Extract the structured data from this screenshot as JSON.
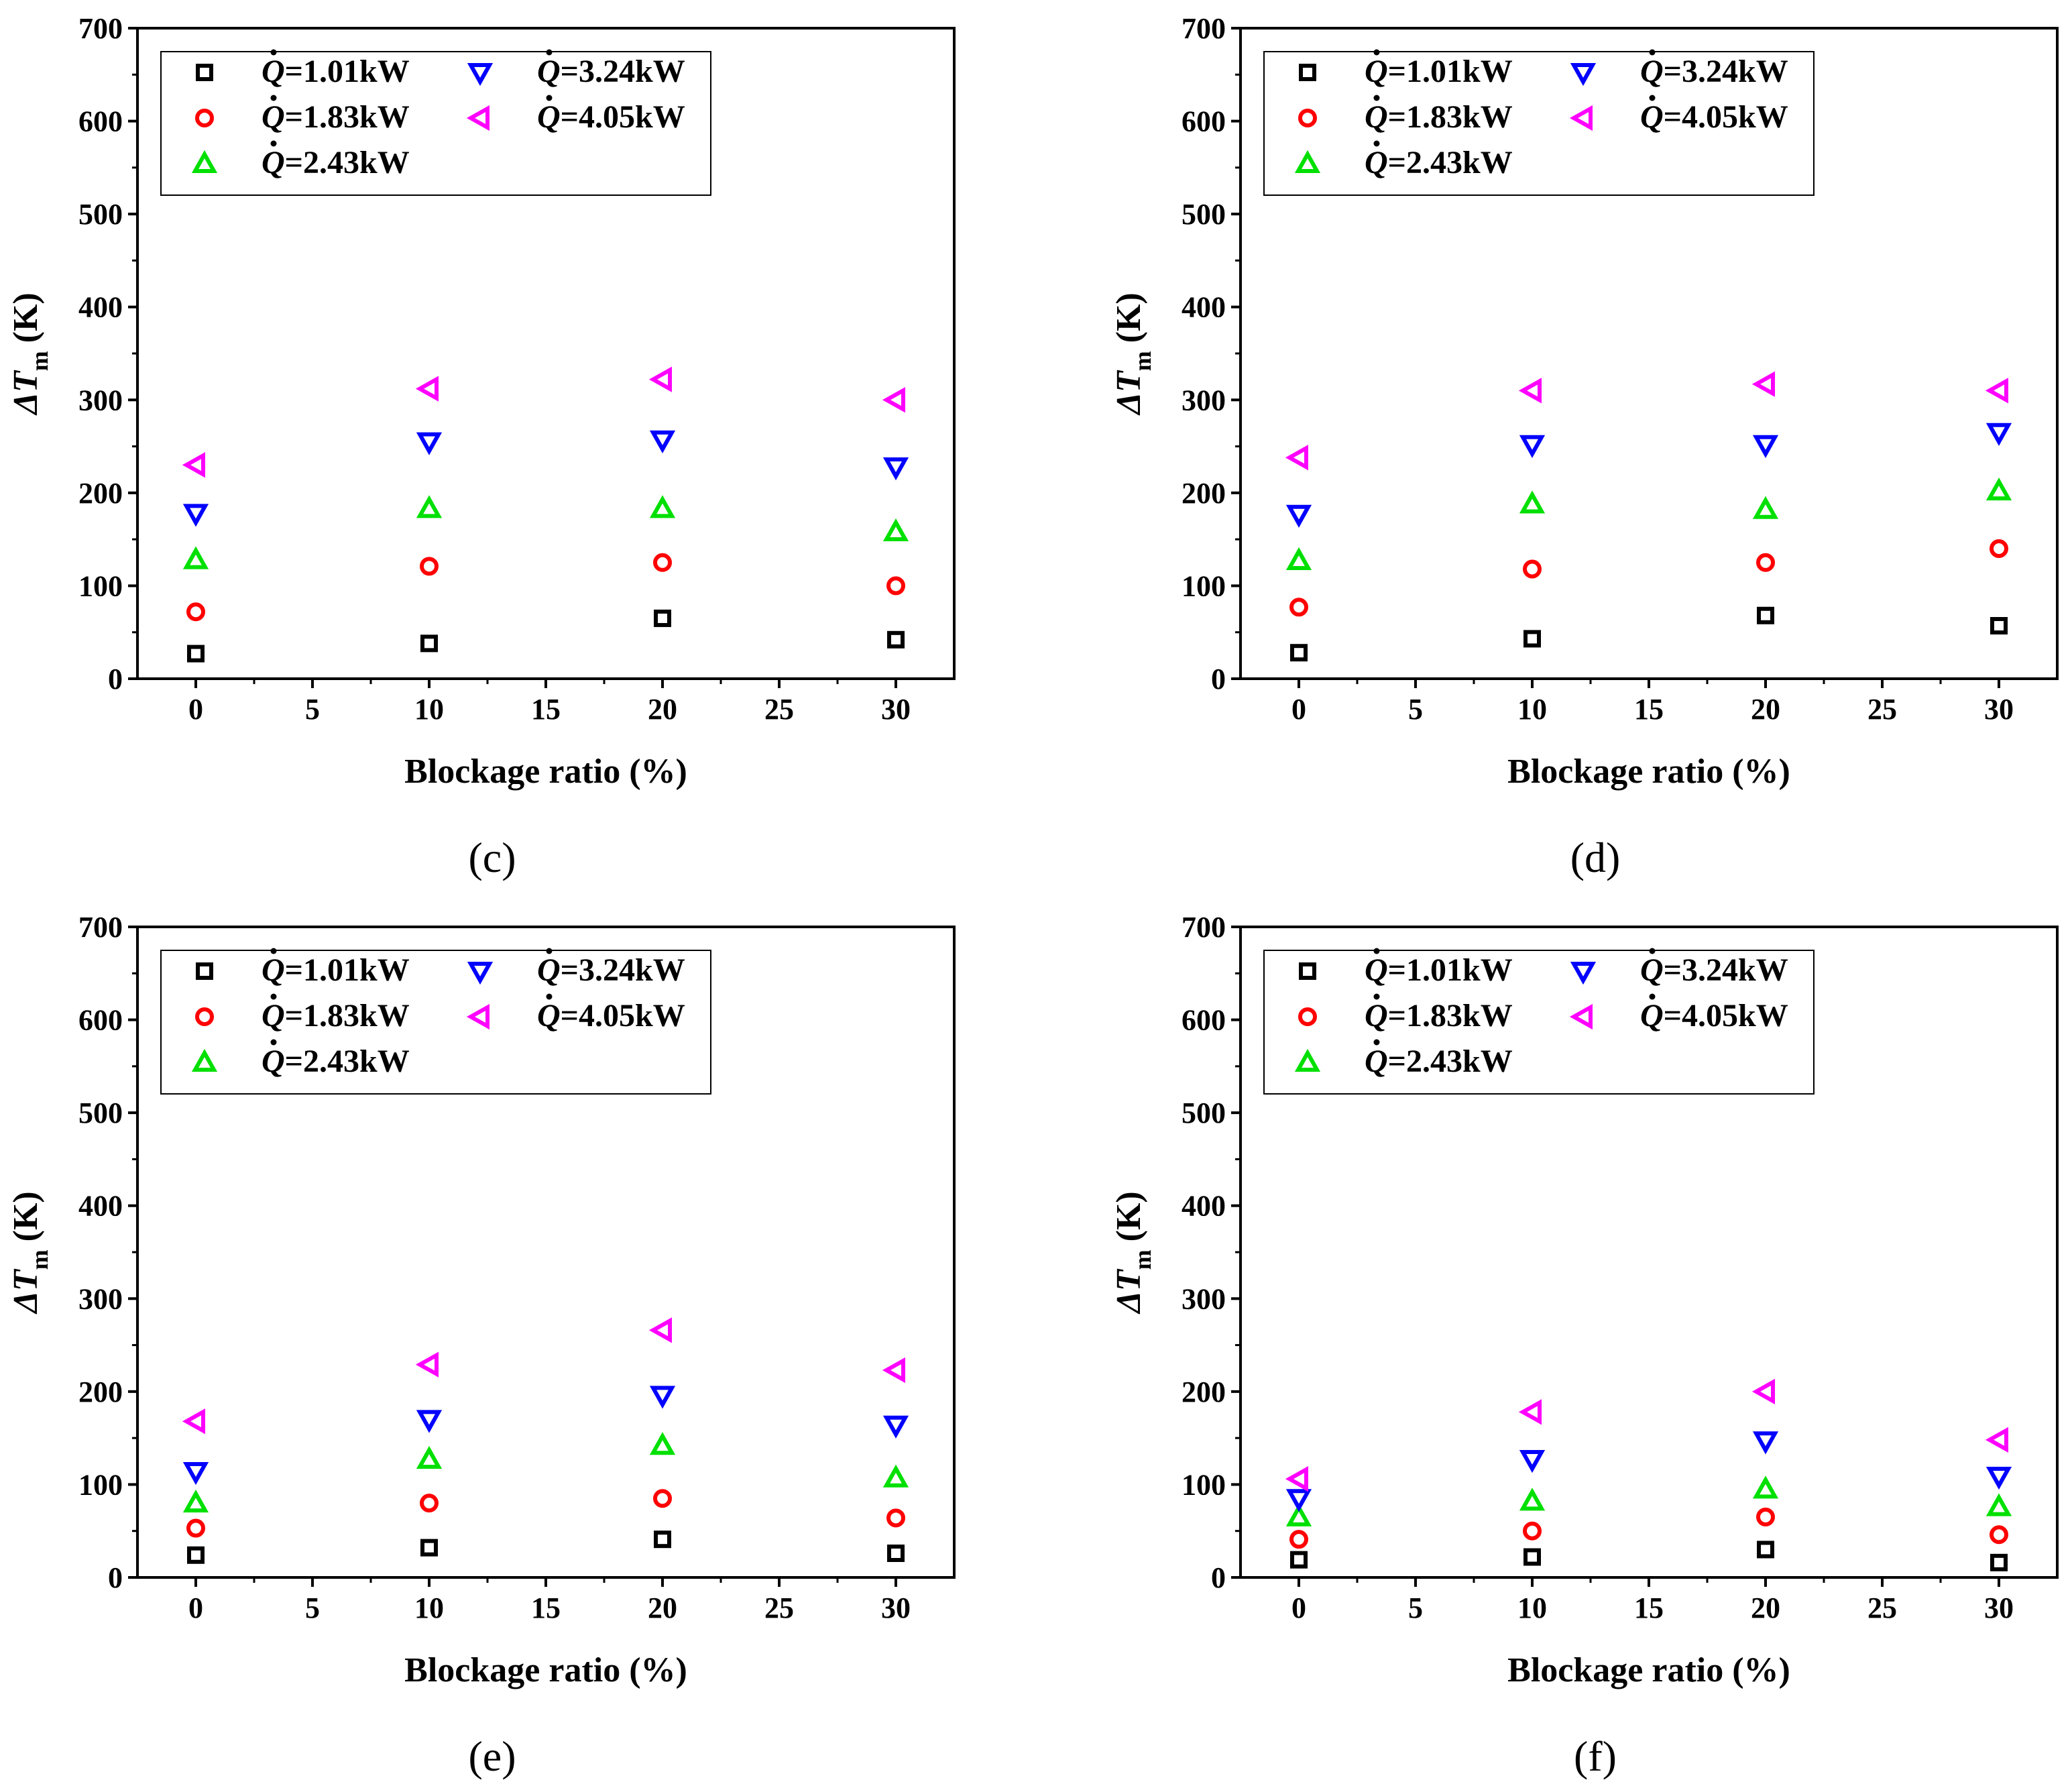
{
  "chart_data": [
    {
      "type": "scatter",
      "panel_label": "(c)",
      "title": "",
      "xlabel": "Blockage ratio (%)",
      "ylabel_main": "ΔT",
      "ylabel_sub": "m",
      "ylabel_unit": "(K)",
      "xlim": [
        -2.5,
        32.5
      ],
      "ylim": [
        0,
        700
      ],
      "xticks": [
        0,
        5,
        10,
        15,
        20,
        25,
        30
      ],
      "yticks": [
        0,
        100,
        200,
        300,
        400,
        500,
        600,
        700
      ],
      "legend_position": "top-left",
      "x": [
        0,
        10,
        20,
        30
      ],
      "series": [
        {
          "name": "Q=1.01kW",
          "marker": "square",
          "color": "#000000",
          "values": [
            27,
            38,
            65,
            42
          ]
        },
        {
          "name": "Q=1.83kW",
          "marker": "circle",
          "color": "#ff0000",
          "values": [
            72,
            121,
            125,
            100
          ]
        },
        {
          "name": "Q=2.43kW",
          "marker": "triangle-up",
          "color": "#00e000",
          "values": [
            128,
            183,
            183,
            158
          ]
        },
        {
          "name": "Q=3.24kW",
          "marker": "triangle-down",
          "color": "#0000ff",
          "values": [
            178,
            255,
            257,
            228
          ]
        },
        {
          "name": "Q=4.05kW",
          "marker": "triangle-left",
          "color": "#ff00ff",
          "values": [
            230,
            312,
            322,
            300
          ]
        }
      ]
    },
    {
      "type": "scatter",
      "panel_label": "(d)",
      "title": "",
      "xlabel": "Blockage ratio (%)",
      "ylabel_main": "ΔT",
      "ylabel_sub": "m",
      "ylabel_unit": "(K)",
      "xlim": [
        -2.5,
        32.5
      ],
      "ylim": [
        0,
        700
      ],
      "xticks": [
        0,
        5,
        10,
        15,
        20,
        25,
        30
      ],
      "yticks": [
        0,
        100,
        200,
        300,
        400,
        500,
        600,
        700
      ],
      "legend_position": "top-left",
      "x": [
        0,
        10,
        20,
        30
      ],
      "series": [
        {
          "name": "Q=1.01kW",
          "marker": "square",
          "color": "#000000",
          "values": [
            28,
            43,
            68,
            57
          ]
        },
        {
          "name": "Q=1.83kW",
          "marker": "circle",
          "color": "#ff0000",
          "values": [
            77,
            118,
            125,
            140
          ]
        },
        {
          "name": "Q=2.43kW",
          "marker": "triangle-up",
          "color": "#00e000",
          "values": [
            127,
            188,
            182,
            202
          ]
        },
        {
          "name": "Q=3.24kW",
          "marker": "triangle-down",
          "color": "#0000ff",
          "values": [
            177,
            252,
            252,
            265
          ]
        },
        {
          "name": "Q=4.05kW",
          "marker": "triangle-left",
          "color": "#ff00ff",
          "values": [
            238,
            310,
            317,
            310
          ]
        }
      ]
    },
    {
      "type": "scatter",
      "panel_label": "(e)",
      "title": "",
      "xlabel": "Blockage ratio (%)",
      "ylabel_main": "ΔT",
      "ylabel_sub": "m",
      "ylabel_unit": "(K)",
      "xlim": [
        -2.5,
        32.5
      ],
      "ylim": [
        0,
        700
      ],
      "xticks": [
        0,
        5,
        10,
        15,
        20,
        25,
        30
      ],
      "yticks": [
        0,
        100,
        200,
        300,
        400,
        500,
        600,
        700
      ],
      "legend_position": "top-left",
      "x": [
        0,
        10,
        20,
        30
      ],
      "series": [
        {
          "name": "Q=1.01kW",
          "marker": "square",
          "color": "#000000",
          "values": [
            24,
            32,
            41,
            26
          ]
        },
        {
          "name": "Q=1.83kW",
          "marker": "circle",
          "color": "#ff0000",
          "values": [
            53,
            80,
            85,
            64
          ]
        },
        {
          "name": "Q=2.43kW",
          "marker": "triangle-up",
          "color": "#00e000",
          "values": [
            80,
            127,
            142,
            107
          ]
        },
        {
          "name": "Q=3.24kW",
          "marker": "triangle-down",
          "color": "#0000ff",
          "values": [
            114,
            170,
            196,
            164
          ]
        },
        {
          "name": "Q=4.05kW",
          "marker": "triangle-left",
          "color": "#ff00ff",
          "values": [
            168,
            229,
            266,
            223
          ]
        }
      ]
    },
    {
      "type": "scatter",
      "panel_label": "(f)",
      "title": "",
      "xlabel": "Blockage ratio (%)",
      "ylabel_main": "ΔT",
      "ylabel_sub": "m",
      "ylabel_unit": "(K)",
      "xlim": [
        -2.5,
        32.5
      ],
      "ylim": [
        0,
        700
      ],
      "xticks": [
        0,
        5,
        10,
        15,
        20,
        25,
        30
      ],
      "yticks": [
        0,
        100,
        200,
        300,
        400,
        500,
        600,
        700
      ],
      "legend_position": "top-left",
      "x": [
        0,
        10,
        20,
        30
      ],
      "series": [
        {
          "name": "Q=1.01kW",
          "marker": "square",
          "color": "#000000",
          "values": [
            19,
            22,
            30,
            16
          ]
        },
        {
          "name": "Q=1.83kW",
          "marker": "circle",
          "color": "#ff0000",
          "values": [
            41,
            50,
            65,
            46
          ]
        },
        {
          "name": "Q=2.43kW",
          "marker": "triangle-up",
          "color": "#00e000",
          "values": [
            65,
            82,
            95,
            76
          ]
        },
        {
          "name": "Q=3.24kW",
          "marker": "triangle-down",
          "color": "#0000ff",
          "values": [
            85,
            127,
            147,
            109
          ]
        },
        {
          "name": "Q=4.05kW",
          "marker": "triangle-left",
          "color": "#ff00ff",
          "values": [
            106,
            178,
            200,
            148
          ]
        }
      ]
    }
  ],
  "legend_labels": [
    {
      "symbol": "Q",
      "text": "=1.01kW"
    },
    {
      "symbol": "Q",
      "text": "=1.83kW"
    },
    {
      "symbol": "Q",
      "text": "=2.43kW"
    },
    {
      "symbol": "Q",
      "text": "=3.24kW"
    },
    {
      "symbol": "Q",
      "text": "=4.05kW"
    }
  ]
}
